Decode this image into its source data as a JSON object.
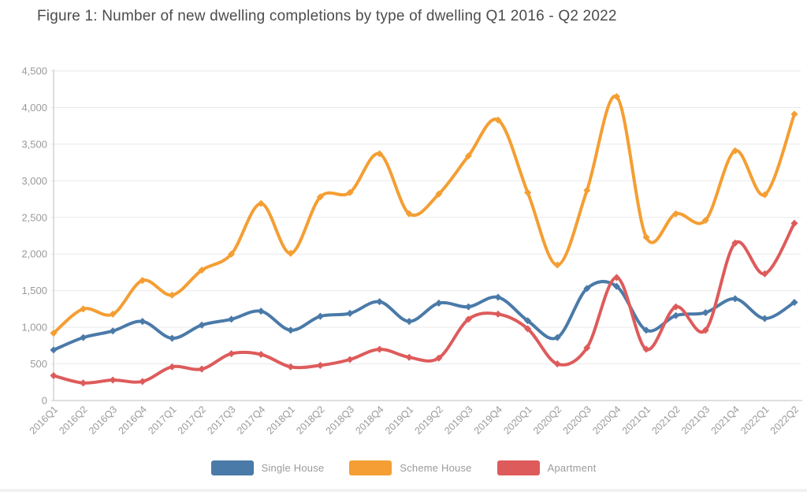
{
  "figure": {
    "title": "Figure 1: Number of new dwelling completions by type of dwelling Q1 2016 - Q2 2022"
  },
  "colors": {
    "background": "#ffffff",
    "title_text": "#4c4c4e",
    "tick_text": "#9a9a9a",
    "gridline": "#e9e9e9",
    "axis_line": "#cccccc",
    "single_house": "#4a7aa8",
    "scheme_house": "#f49e33",
    "apartment": "#de5b5b",
    "legend_text": "#9b9b9b"
  },
  "chart_data": {
    "type": "line",
    "title": "Figure 1: Number of new dwelling completions by type of dwelling Q1 2016 - Q2 2022",
    "xlabel": "",
    "ylabel": "",
    "ylim": [
      0,
      4500
    ],
    "y_tick_step": 500,
    "y_tick_labels": [
      "0",
      "500",
      "1,000",
      "1,500",
      "2,000",
      "2,500",
      "3,000",
      "3,500",
      "4,000",
      "4,500"
    ],
    "grid": "horizontal-only",
    "legend_position": "bottom",
    "x_tick_rotation_deg": -45,
    "curve": "smooth-spline",
    "point_marker": "diamond",
    "categories": [
      "2016Q1",
      "2016Q2",
      "2016Q3",
      "2016Q4",
      "2017Q1",
      "2017Q2",
      "2017Q3",
      "2017Q4",
      "2018Q1",
      "2018Q2",
      "2018Q3",
      "2018Q4",
      "2019Q1",
      "2019Q2",
      "2019Q3",
      "2019Q4",
      "2020Q1",
      "2020Q2",
      "2020Q3",
      "2020Q4",
      "2021Q1",
      "2021Q2",
      "2021Q3",
      "2021Q4",
      "2022Q1",
      "2022Q2"
    ],
    "series": [
      {
        "name": "Single House",
        "color": "#4a7aa8",
        "values": [
          690,
          860,
          950,
          1080,
          850,
          1030,
          1110,
          1220,
          960,
          1150,
          1190,
          1350,
          1080,
          1330,
          1280,
          1410,
          1090,
          860,
          1530,
          1560,
          960,
          1160,
          1200,
          1390,
          1120,
          1340
        ]
      },
      {
        "name": "Scheme House",
        "color": "#f49e33",
        "values": [
          920,
          1250,
          1180,
          1640,
          1440,
          1780,
          2000,
          2690,
          2010,
          2780,
          2840,
          3370,
          2550,
          2820,
          3340,
          3830,
          2840,
          1850,
          2870,
          4150,
          2230,
          2550,
          2460,
          3410,
          2810,
          3910
        ]
      },
      {
        "name": "Apartment",
        "color": "#de5b5b",
        "values": [
          340,
          240,
          280,
          260,
          460,
          430,
          640,
          630,
          460,
          480,
          560,
          700,
          590,
          580,
          1110,
          1180,
          980,
          500,
          720,
          1680,
          700,
          1280,
          960,
          2150,
          1730,
          2420
        ]
      }
    ]
  }
}
